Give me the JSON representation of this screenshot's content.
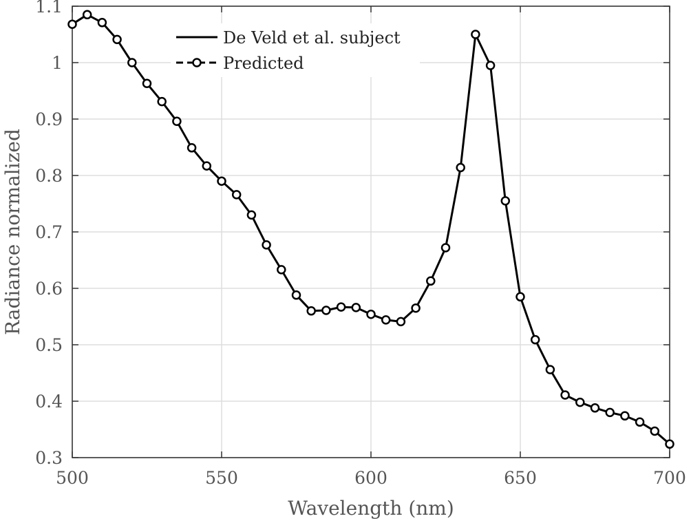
{
  "chart_data": {
    "type": "line",
    "title": "",
    "xlabel": "Wavelength (nm)",
    "ylabel": "Radiance normalized",
    "xlim": [
      500,
      700
    ],
    "ylim": [
      0.3,
      1.1
    ],
    "xticks": [
      500,
      550,
      600,
      650,
      700
    ],
    "yticks": [
      0.3,
      0.4,
      0.5,
      0.6,
      0.7,
      0.8,
      0.9,
      1.0,
      1.1
    ],
    "xtick_labels": [
      "500",
      "550",
      "600",
      "650",
      "700"
    ],
    "ytick_labels": [
      "0.3",
      "0.4",
      "0.5",
      "0.6",
      "0.7",
      "0.8",
      "0.9",
      "1",
      "1.1"
    ],
    "grid": true,
    "legend_position": "top-center",
    "x": [
      500,
      505,
      510,
      515,
      520,
      525,
      530,
      535,
      540,
      545,
      550,
      555,
      560,
      565,
      570,
      575,
      580,
      585,
      590,
      595,
      600,
      605,
      610,
      615,
      620,
      625,
      630,
      635,
      640,
      645,
      650,
      655,
      660,
      665,
      670,
      675,
      680,
      685,
      690,
      695,
      700
    ],
    "series": [
      {
        "name": "De Veld et al. subject",
        "style": "solid",
        "color": "#000000",
        "values": [
          1.068,
          1.085,
          1.071,
          1.041,
          1.0,
          0.963,
          0.931,
          0.896,
          0.849,
          0.817,
          0.79,
          0.766,
          0.73,
          0.677,
          0.633,
          0.588,
          0.56,
          0.561,
          0.567,
          0.566,
          0.554,
          0.544,
          0.541,
          0.565,
          0.613,
          0.672,
          0.814,
          1.05,
          0.995,
          0.755,
          0.585,
          0.509,
          0.456,
          0.411,
          0.398,
          0.388,
          0.38,
          0.374,
          0.363,
          0.347,
          0.324
        ]
      },
      {
        "name": "Predicted",
        "style": "dashed-circle",
        "color": "#000000",
        "values": [
          1.068,
          1.085,
          1.071,
          1.041,
          1.0,
          0.963,
          0.931,
          0.896,
          0.849,
          0.817,
          0.79,
          0.766,
          0.73,
          0.677,
          0.633,
          0.588,
          0.56,
          0.561,
          0.567,
          0.566,
          0.554,
          0.544,
          0.541,
          0.565,
          0.613,
          0.672,
          0.814,
          1.05,
          0.995,
          0.755,
          0.585,
          0.509,
          0.456,
          0.411,
          0.398,
          0.388,
          0.38,
          0.374,
          0.363,
          0.347,
          0.324
        ]
      }
    ]
  }
}
